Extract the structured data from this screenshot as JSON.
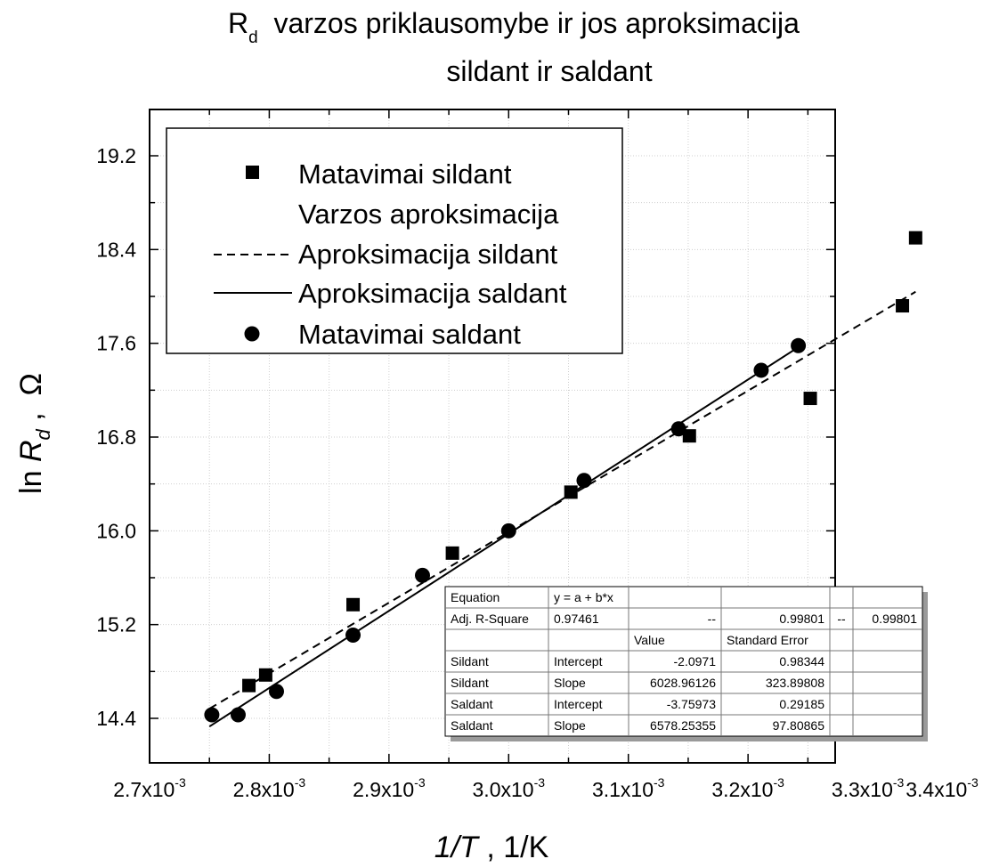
{
  "chart_data": {
    "type": "scatter",
    "title_main": "varzos priklausomybe ir jos aproksimacija",
    "title_symbol": "R",
    "title_symbol_sub": "d",
    "title_line2": "sildant ir saldant",
    "xlabel_italic": "1/T",
    "xlabel_rest": " , 1/K",
    "ylabel_prefix": "ln ",
    "ylabel_symbol": "R",
    "ylabel_sub": "d",
    "ylabel_rest": " ,  Ω",
    "xlim": [
      0.0027,
      0.0034
    ],
    "ylim": [
      13.95,
      19.7
    ],
    "x_ticks": [
      {
        "value": 0.0027,
        "mant": "2.7x10",
        "exp": "-3"
      },
      {
        "value": 0.0028,
        "mant": "2.8x10",
        "exp": "-3"
      },
      {
        "value": 0.0029,
        "mant": "2.9x10",
        "exp": "-3"
      },
      {
        "value": 0.003,
        "mant": "3.0x10",
        "exp": "-3"
      },
      {
        "value": 0.0031,
        "mant": "3.1x10",
        "exp": "-3"
      },
      {
        "value": 0.0032,
        "mant": "3.2x10",
        "exp": "-3"
      },
      {
        "value": 0.0033,
        "mant": "3.3x10",
        "exp": "-3"
      },
      {
        "value": 0.0034,
        "mant": "3.4x10",
        "exp": "-3"
      }
    ],
    "y_ticks": [
      {
        "value": 14.4,
        "label": "14.4"
      },
      {
        "value": 15.2,
        "label": "15.2"
      },
      {
        "value": 16.0,
        "label": "16.0"
      },
      {
        "value": 16.8,
        "label": "16.8"
      },
      {
        "value": 17.6,
        "label": "17.6"
      },
      {
        "value": 18.4,
        "label": "18.4"
      },
      {
        "value": 19.2,
        "label": "19.2"
      }
    ],
    "grid": true,
    "legend_position": "top-left",
    "series": [
      {
        "name": "Matavimai sildant",
        "kind": "points",
        "marker": "square",
        "x": [
          0.002783,
          0.002797,
          0.00287,
          0.002953,
          0.003052,
          0.003151,
          0.003252,
          0.003329,
          0.00334
        ],
        "y": [
          14.68,
          14.77,
          15.37,
          15.81,
          16.33,
          16.81,
          17.13,
          17.92,
          18.5
        ]
      },
      {
        "name": "Varzos aproksimacija",
        "kind": "legend-only"
      },
      {
        "name": "Aproksimacija sildant",
        "kind": "fit",
        "line": "dashed",
        "intercept": -2.0971,
        "slope": 6028.96126,
        "x_range": [
          0.00275,
          0.00334
        ]
      },
      {
        "name": "Aproksimacija saldant",
        "kind": "fit",
        "line": "solid",
        "intercept": -3.75973,
        "slope": 6578.25355,
        "x_range": [
          0.00275,
          0.003242
        ]
      },
      {
        "name": "Matavimai saldant",
        "kind": "points",
        "marker": "circle",
        "x": [
          0.002752,
          0.002774,
          0.002806,
          0.00287,
          0.002928,
          0.003,
          0.003063,
          0.003142,
          0.003211,
          0.003242
        ],
        "y": [
          14.43,
          14.43,
          14.63,
          15.11,
          15.62,
          16.0,
          16.43,
          16.87,
          17.37,
          17.58
        ]
      }
    ],
    "stats_table": {
      "rows": [
        [
          "Equation",
          "y = a + b*x",
          "",
          "",
          "",
          ""
        ],
        [
          "Adj. R-Square",
          "0.97461",
          "--",
          "0.99801",
          "--",
          "0.99801"
        ],
        [
          "",
          "",
          "Value",
          "Standard Error",
          "",
          ""
        ],
        [
          "Sildant",
          "Intercept",
          "-2.0971",
          "0.98344",
          "",
          ""
        ],
        [
          "Sildant",
          "Slope",
          "6028.96126",
          "323.89808",
          "",
          ""
        ],
        [
          "Saldant",
          "Intercept",
          "-3.75973",
          "0.29185",
          "",
          ""
        ],
        [
          "Saldant",
          "Slope",
          "6578.25355",
          "97.80865",
          "",
          ""
        ]
      ]
    }
  }
}
